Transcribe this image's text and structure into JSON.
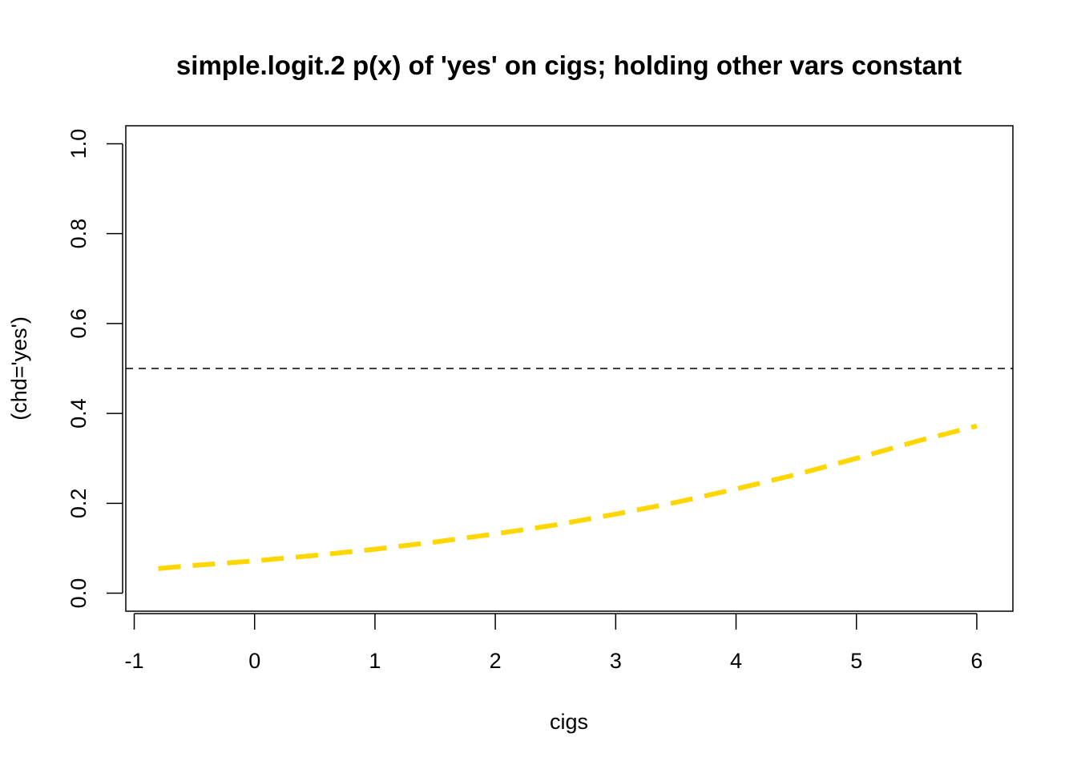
{
  "chart_data": {
    "type": "line",
    "title": "simple.logit.2 p(x) of 'yes' on cigs; holding other vars constant",
    "xlabel": "cigs",
    "ylabel": "(chd='yes')",
    "xlim": [
      -1.07,
      6.3
    ],
    "ylim": [
      -0.04,
      1.04
    ],
    "x_ticks": [
      -1,
      0,
      1,
      2,
      3,
      4,
      5,
      6
    ],
    "x_tick_labels": [
      "-1",
      "0",
      "1",
      "2",
      "3",
      "4",
      "5",
      "6"
    ],
    "y_ticks": [
      0.0,
      0.2,
      0.4,
      0.6,
      0.8,
      1.0
    ],
    "y_tick_labels": [
      "0.0",
      "0.2",
      "0.4",
      "0.6",
      "0.8",
      "1.0"
    ],
    "reference_line": {
      "y": 0.5,
      "style": "dashed",
      "color": "#000000"
    },
    "grid": false,
    "series": [
      {
        "color": "#FFD700",
        "style": "dashed",
        "x": [
          -0.8,
          -0.5,
          0.0,
          0.5,
          1.0,
          1.5,
          2.0,
          2.5,
          3.0,
          3.5,
          4.0,
          4.5,
          5.0,
          5.5,
          6.0
        ],
        "y": [
          0.055,
          0.062,
          0.072,
          0.084,
          0.098,
          0.114,
          0.132,
          0.152,
          0.176,
          0.202,
          0.232,
          0.264,
          0.3,
          0.338,
          0.372
        ]
      }
    ]
  }
}
